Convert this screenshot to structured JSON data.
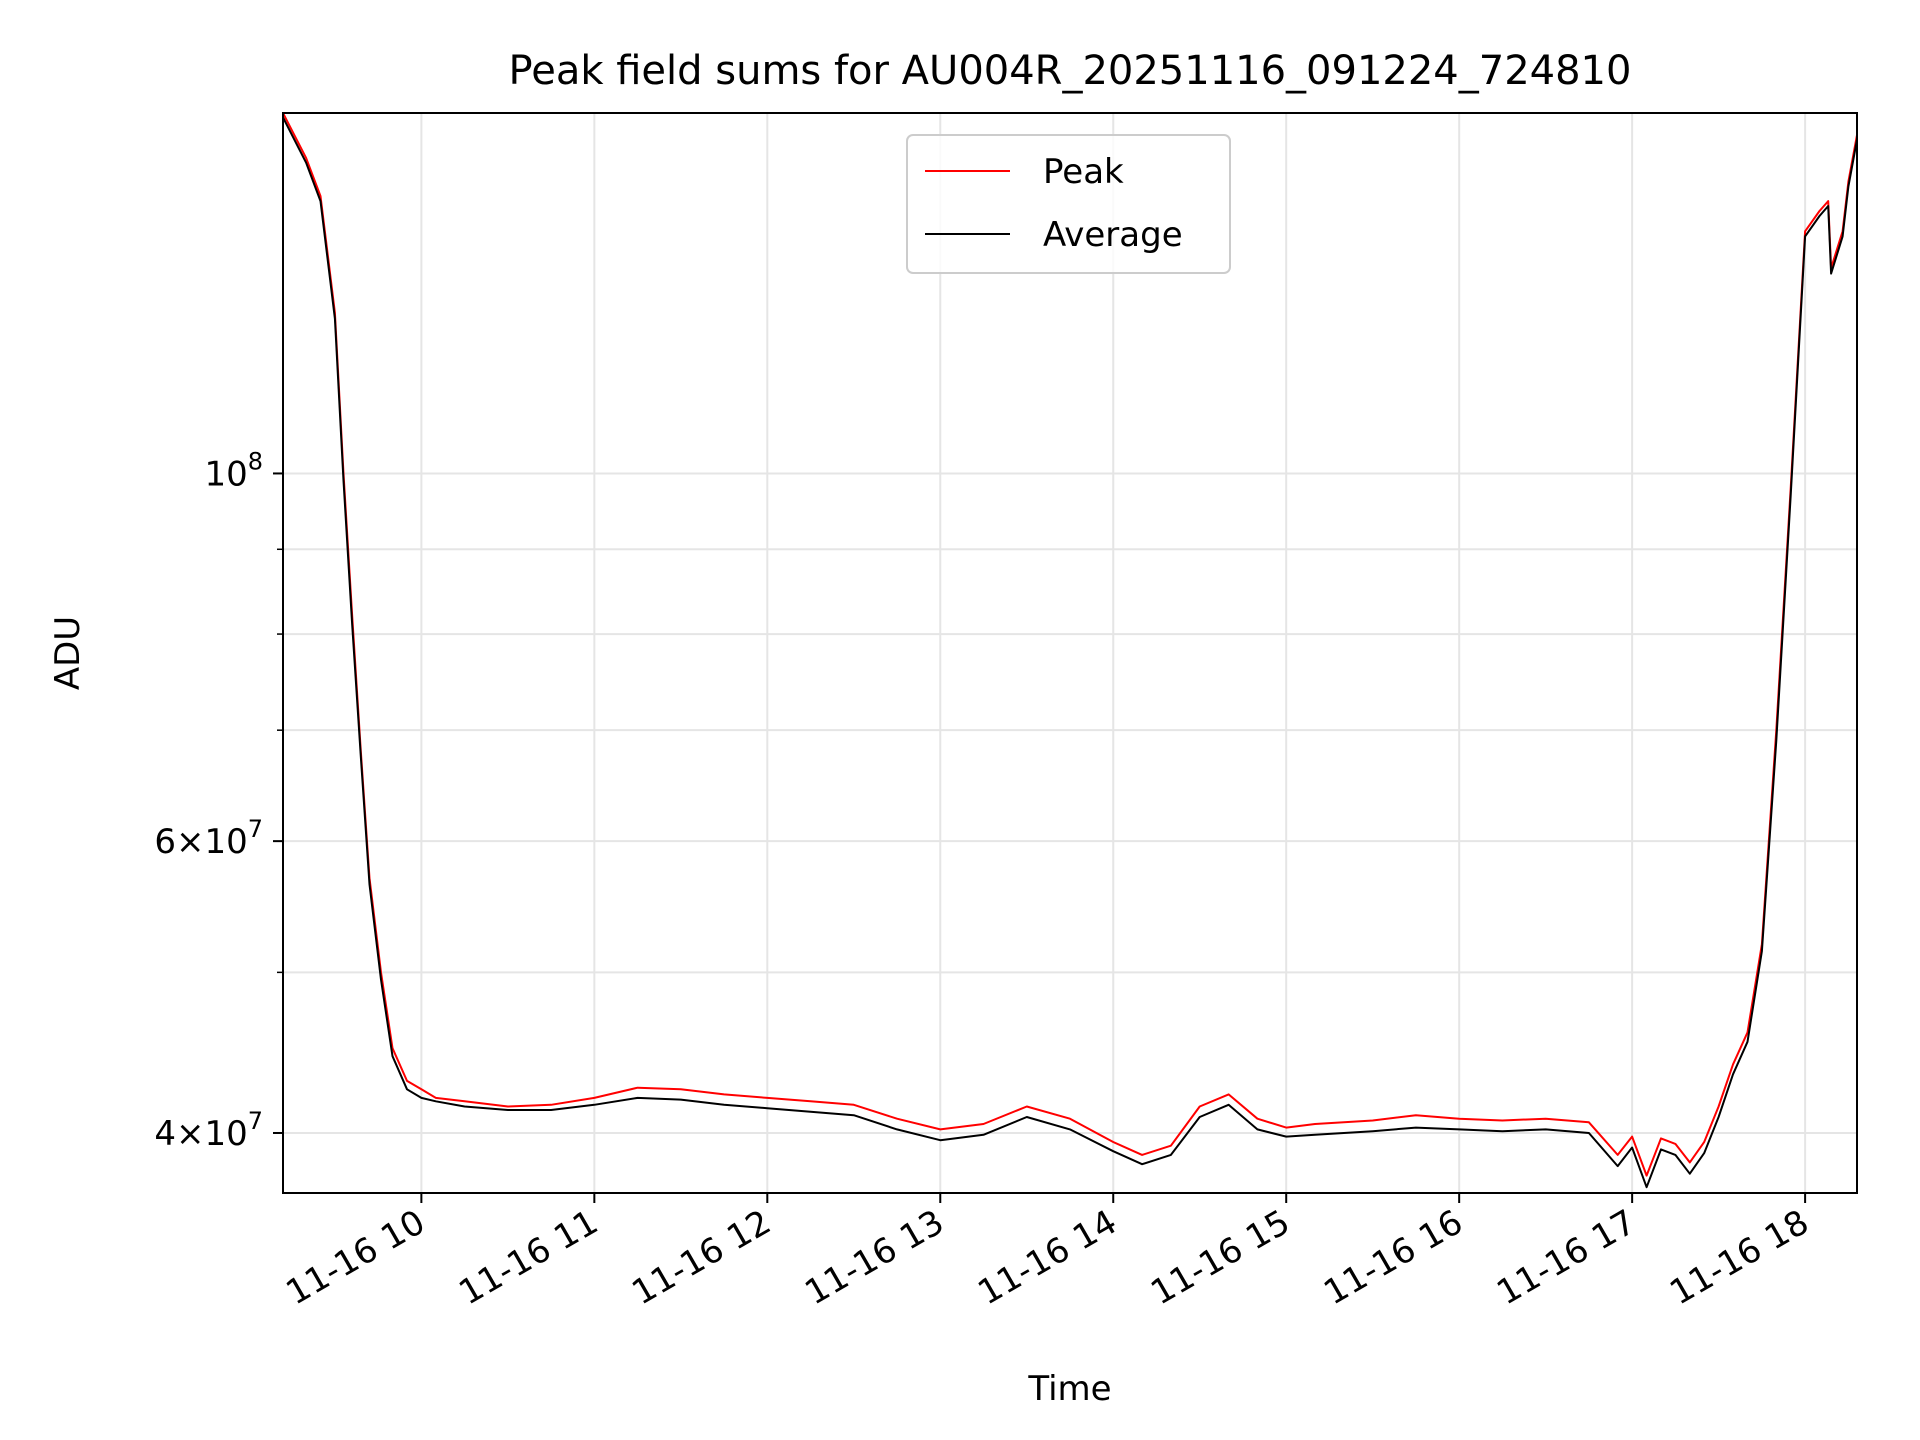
{
  "chart_data": {
    "type": "line",
    "title": "Peak field sums for AU004R_20251116_091224_724810",
    "xlabel": "Time",
    "ylabel": "ADU",
    "x_scale": "time",
    "y_scale": "log",
    "xlim": [
      "2025-11-16 09:12",
      "2025-11-16 18:18"
    ],
    "ylim": [
      36800000,
      165000000
    ],
    "x_ticks": [
      {
        "value": "2025-11-16 10:00",
        "label": "11-16 10"
      },
      {
        "value": "2025-11-16 11:00",
        "label": "11-16 11"
      },
      {
        "value": "2025-11-16 12:00",
        "label": "11-16 12"
      },
      {
        "value": "2025-11-16 13:00",
        "label": "11-16 13"
      },
      {
        "value": "2025-11-16 14:00",
        "label": "11-16 14"
      },
      {
        "value": "2025-11-16 15:00",
        "label": "11-16 15"
      },
      {
        "value": "2025-11-16 16:00",
        "label": "11-16 16"
      },
      {
        "value": "2025-11-16 17:00",
        "label": "11-16 17"
      },
      {
        "value": "2025-11-16 18:00",
        "label": "11-16 18"
      }
    ],
    "y_major_ticks": [
      {
        "value": 40000000,
        "base": "4×10",
        "exp": "7"
      },
      {
        "value": 60000000,
        "base": "6×10",
        "exp": "7"
      },
      {
        "value": 100000000,
        "base": "10",
        "exp": "8"
      }
    ],
    "y_minor_ticks": [
      50000000,
      70000000,
      80000000,
      90000000
    ],
    "grid": true,
    "legend_position": "upper center",
    "series": [
      {
        "name": "Peak",
        "color": "#ff0000",
        "x": [
          "2025-11-16 09:12",
          "2025-11-16 09:20",
          "2025-11-16 09:25",
          "2025-11-16 09:30",
          "2025-11-16 09:33",
          "2025-11-16 09:36",
          "2025-11-16 09:39",
          "2025-11-16 09:42",
          "2025-11-16 09:46",
          "2025-11-16 09:50",
          "2025-11-16 09:55",
          "2025-11-16 10:00",
          "2025-11-16 10:05",
          "2025-11-16 10:15",
          "2025-11-16 10:30",
          "2025-11-16 10:45",
          "2025-11-16 11:00",
          "2025-11-16 11:15",
          "2025-11-16 11:30",
          "2025-11-16 11:45",
          "2025-11-16 12:00",
          "2025-11-16 12:15",
          "2025-11-16 12:30",
          "2025-11-16 12:45",
          "2025-11-16 13:00",
          "2025-11-16 13:15",
          "2025-11-16 13:30",
          "2025-11-16 13:45",
          "2025-11-16 14:00",
          "2025-11-16 14:10",
          "2025-11-16 14:20",
          "2025-11-16 14:30",
          "2025-11-16 14:40",
          "2025-11-16 14:50",
          "2025-11-16 15:00",
          "2025-11-16 15:10",
          "2025-11-16 15:20",
          "2025-11-16 15:30",
          "2025-11-16 15:45",
          "2025-11-16 16:00",
          "2025-11-16 16:15",
          "2025-11-16 16:30",
          "2025-11-16 16:45",
          "2025-11-16 16:55",
          "2025-11-16 17:00",
          "2025-11-16 17:05",
          "2025-11-16 17:10",
          "2025-11-16 17:15",
          "2025-11-16 17:20",
          "2025-11-16 17:25",
          "2025-11-16 17:30",
          "2025-11-16 17:35",
          "2025-11-16 17:40",
          "2025-11-16 17:45",
          "2025-11-16 17:50",
          "2025-11-16 17:55",
          "2025-11-16 18:00",
          "2025-11-16 18:05",
          "2025-11-16 18:08",
          "2025-11-16 18:09",
          "2025-11-16 18:13",
          "2025-11-16 18:15",
          "2025-11-16 18:18"
        ],
        "y": [
          165000000,
          155000000,
          147000000,
          125000000,
          100000000,
          82000000,
          68000000,
          57000000,
          50000000,
          45000000,
          43000000,
          42500000,
          42000000,
          41800000,
          41500000,
          41600000,
          42000000,
          42600000,
          42500000,
          42200000,
          42000000,
          41800000,
          41600000,
          40800000,
          40200000,
          40500000,
          41500000,
          40800000,
          39500000,
          38800000,
          39300000,
          41500000,
          42200000,
          40800000,
          40300000,
          40500000,
          40600000,
          40700000,
          41000000,
          40800000,
          40700000,
          40800000,
          40600000,
          38800000,
          39800000,
          37700000,
          39700000,
          39400000,
          38400000,
          39500000,
          41500000,
          44000000,
          46000000,
          52000000,
          70000000,
          98000000,
          140000000,
          144000000,
          146000000,
          133000000,
          140000000,
          150000000,
          160000000
        ]
      },
      {
        "name": "Average",
        "color": "#000000",
        "x": [
          "2025-11-16 09:12",
          "2025-11-16 09:20",
          "2025-11-16 09:25",
          "2025-11-16 09:30",
          "2025-11-16 09:33",
          "2025-11-16 09:36",
          "2025-11-16 09:39",
          "2025-11-16 09:42",
          "2025-11-16 09:46",
          "2025-11-16 09:50",
          "2025-11-16 09:55",
          "2025-11-16 10:00",
          "2025-11-16 10:05",
          "2025-11-16 10:15",
          "2025-11-16 10:30",
          "2025-11-16 10:45",
          "2025-11-16 11:00",
          "2025-11-16 11:15",
          "2025-11-16 11:30",
          "2025-11-16 11:45",
          "2025-11-16 12:00",
          "2025-11-16 12:15",
          "2025-11-16 12:30",
          "2025-11-16 12:45",
          "2025-11-16 13:00",
          "2025-11-16 13:15",
          "2025-11-16 13:30",
          "2025-11-16 13:45",
          "2025-11-16 14:00",
          "2025-11-16 14:10",
          "2025-11-16 14:20",
          "2025-11-16 14:30",
          "2025-11-16 14:40",
          "2025-11-16 14:50",
          "2025-11-16 15:00",
          "2025-11-16 15:10",
          "2025-11-16 15:20",
          "2025-11-16 15:30",
          "2025-11-16 15:45",
          "2025-11-16 16:00",
          "2025-11-16 16:15",
          "2025-11-16 16:30",
          "2025-11-16 16:45",
          "2025-11-16 16:55",
          "2025-11-16 17:00",
          "2025-11-16 17:05",
          "2025-11-16 17:10",
          "2025-11-16 17:15",
          "2025-11-16 17:20",
          "2025-11-16 17:25",
          "2025-11-16 17:30",
          "2025-11-16 17:35",
          "2025-11-16 17:40",
          "2025-11-16 17:45",
          "2025-11-16 17:50",
          "2025-11-16 17:55",
          "2025-11-16 18:00",
          "2025-11-16 18:05",
          "2025-11-16 18:08",
          "2025-11-16 18:09",
          "2025-11-16 18:13",
          "2025-11-16 18:15",
          "2025-11-16 18:18"
        ],
        "y": [
          164000000,
          154000000,
          146000000,
          124000000,
          99000000,
          81000000,
          67500000,
          56500000,
          49500000,
          44500000,
          42500000,
          42000000,
          41800000,
          41500000,
          41300000,
          41300000,
          41600000,
          42000000,
          41900000,
          41600000,
          41400000,
          41200000,
          41000000,
          40200000,
          39600000,
          39900000,
          40900000,
          40200000,
          39000000,
          38300000,
          38800000,
          40900000,
          41600000,
          40200000,
          39800000,
          39900000,
          40000000,
          40100000,
          40300000,
          40200000,
          40100000,
          40200000,
          40000000,
          38200000,
          39200000,
          37100000,
          39100000,
          38800000,
          37800000,
          38900000,
          40900000,
          43400000,
          45400000,
          51500000,
          69000000,
          97000000,
          139000000,
          143000000,
          145000000,
          132000000,
          139000000,
          149000000,
          159000000
        ]
      }
    ]
  }
}
